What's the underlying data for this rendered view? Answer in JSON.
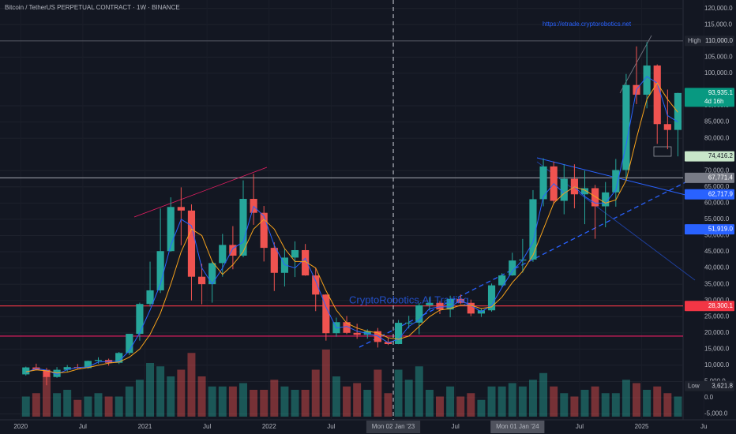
{
  "chart_data": {
    "type": "candlestick",
    "title": "Bitcoin / TetherUS PERPETUAL CONTRACT · 1W · BINANCE",
    "link": "https://etrade.cryptorobotics.net",
    "watermark": "CryptoRobotics.AI Trading",
    "x": [
      "2020-01",
      "2020-02",
      "2020-03",
      "2020-04",
      "2020-05",
      "2020-06",
      "2020-07",
      "2020-08",
      "2020-09",
      "2020-10",
      "2020-11",
      "2020-12",
      "2021-01",
      "2021-02",
      "2021-03",
      "2021-04",
      "2021-05",
      "2021-06",
      "2021-07",
      "2021-08",
      "2021-09",
      "2021-10",
      "2021-11",
      "2021-12",
      "2022-01",
      "2022-02",
      "2022-03",
      "2022-04",
      "2022-05",
      "2022-06",
      "2022-07",
      "2022-08",
      "2022-09",
      "2022-10",
      "2022-11",
      "2022-12",
      "2023-01",
      "2023-02",
      "2023-03",
      "2023-04",
      "2023-05",
      "2023-06",
      "2023-07",
      "2023-08",
      "2023-09",
      "2023-10",
      "2023-11",
      "2023-12",
      "2024-01",
      "2024-02",
      "2024-03",
      "2024-04",
      "2024-05",
      "2024-06",
      "2024-07",
      "2024-08",
      "2024-09",
      "2024-10",
      "2024-11",
      "2024-12",
      "2025-01",
      "2025-02",
      "2025-03",
      "2025-04"
    ],
    "open": [
      7200,
      9350,
      8600,
      6400,
      8620,
      9450,
      9140,
      11350,
      11650,
      10780,
      13800,
      19700,
      28900,
      33100,
      45200,
      58800,
      57700,
      37300,
      35000,
      41500,
      47100,
      43800,
      61300,
      57000,
      46200,
      38500,
      43200,
      45500,
      37700,
      31800,
      19900,
      23300,
      20000,
      19400,
      20500,
      17200,
      16550,
      23100,
      23150,
      28500,
      29250,
      27200,
      30450,
      29250,
      25950,
      26950,
      34650,
      37700,
      42300,
      42600,
      61200,
      71300,
      60700,
      67500,
      62700,
      64600,
      59000,
      63300,
      70200,
      96400,
      93400,
      102400,
      84350,
      82550
    ],
    "high": [
      9600,
      10500,
      9200,
      9450,
      10080,
      10400,
      11450,
      12470,
      12050,
      14100,
      19480,
      29300,
      41950,
      58350,
      61780,
      64850,
      59600,
      41300,
      42300,
      50500,
      52900,
      67000,
      69000,
      59100,
      47900,
      45800,
      48200,
      47400,
      40000,
      31900,
      24700,
      25200,
      22800,
      21100,
      21500,
      18400,
      23950,
      25250,
      29200,
      31000,
      29800,
      31450,
      31800,
      30250,
      27500,
      35200,
      38400,
      44700,
      48950,
      64000,
      73800,
      72800,
      71950,
      71950,
      70000,
      65600,
      66500,
      73600,
      99800,
      108300,
      109600,
      102750,
      95000,
      94000
    ],
    "low": [
      6850,
      8450,
      3850,
      6150,
      8100,
      8900,
      8950,
      10500,
      9900,
      10400,
      13200,
      17600,
      28100,
      32300,
      45000,
      47000,
      30000,
      28800,
      29300,
      37300,
      39600,
      43300,
      53300,
      42000,
      32900,
      34300,
      37200,
      37600,
      26700,
      17600,
      18800,
      19600,
      18150,
      18200,
      15480,
      16250,
      16500,
      21350,
      19550,
      26900,
      25800,
      24800,
      28850,
      25150,
      24900,
      26550,
      34100,
      37600,
      38550,
      41900,
      59000,
      59600,
      56550,
      58400,
      53500,
      49000,
      52550,
      58900,
      66800,
      90500,
      89200,
      78250,
      76600,
      74400
    ],
    "close": [
      9350,
      8600,
      6400,
      8620,
      9450,
      9140,
      11350,
      11650,
      10780,
      13800,
      19700,
      28900,
      33100,
      45200,
      58800,
      57700,
      37300,
      35000,
      41500,
      47100,
      43800,
      61300,
      57000,
      46200,
      38500,
      43200,
      45500,
      37700,
      31800,
      19900,
      23300,
      20000,
      19400,
      20500,
      17200,
      16550,
      23100,
      23150,
      28500,
      29250,
      27200,
      30450,
      29250,
      25950,
      26950,
      34650,
      37700,
      42300,
      42600,
      61200,
      71300,
      60700,
      67500,
      62700,
      64600,
      59000,
      63300,
      70200,
      96400,
      93400,
      102400,
      84350,
      82550,
      93935.1
    ],
    "volume": [
      30,
      35,
      60,
      35,
      40,
      25,
      30,
      35,
      30,
      30,
      45,
      55,
      80,
      75,
      60,
      70,
      95,
      60,
      45,
      45,
      45,
      50,
      40,
      40,
      55,
      45,
      40,
      40,
      70,
      100,
      60,
      45,
      50,
      40,
      70,
      35,
      70,
      55,
      75,
      40,
      30,
      45,
      30,
      35,
      25,
      45,
      45,
      50,
      45,
      55,
      65,
      45,
      35,
      30,
      40,
      45,
      35,
      35,
      55,
      50,
      40,
      45,
      35,
      30
    ],
    "up_color": "#26a69a",
    "down_color": "#ef5350",
    "series": [
      {
        "color": "#2962ff",
        "values": [
          7800,
          9000,
          8500,
          7200,
          8700,
          9300,
          9500,
          11000,
          11200,
          11300,
          14500,
          20000,
          27000,
          35000,
          47000,
          55000,
          53000,
          40000,
          35000,
          40000,
          46000,
          48000,
          59000,
          56000,
          47000,
          41000,
          40000,
          43000,
          36000,
          28000,
          21500,
          22000,
          20500,
          19800,
          19000,
          17000,
          18000,
          22000,
          24000,
          27500,
          28000,
          28000,
          30000,
          28500,
          26500,
          28500,
          34000,
          39000,
          42500,
          48000,
          62000,
          66000,
          63000,
          65000,
          62000,
          60000,
          60000,
          64000,
          78000,
          95000,
          99000,
          97000,
          87000,
          85000
        ]
      },
      {
        "color": "#f7a21b",
        "values": [
          8000,
          8600,
          8300,
          7600,
          7900,
          8800,
          9300,
          10000,
          10700,
          11000,
          12500,
          15000,
          19500,
          26000,
          35000,
          45000,
          52000,
          50000,
          42000,
          38000,
          41000,
          45000,
          52000,
          55000,
          52000,
          46000,
          42000,
          42000,
          40000,
          33000,
          27000,
          23000,
          21500,
          20500,
          20000,
          18500,
          18000,
          19000,
          22000,
          25000,
          27000,
          27500,
          28500,
          28500,
          27500,
          28000,
          31000,
          35500,
          39000,
          44000,
          52000,
          60000,
          63000,
          65000,
          64000,
          62000,
          60000,
          61000,
          67000,
          80000,
          92000,
          97000,
          92000,
          88000
        ]
      }
    ],
    "xlim": [
      "2019-11",
      "2025-05"
    ],
    "xticks": [
      {
        "value": "2020-01",
        "label": "2020"
      },
      {
        "value": "2020-07",
        "label": "Jul"
      },
      {
        "value": "2021-01",
        "label": "2021"
      },
      {
        "value": "2021-07",
        "label": "Jul"
      },
      {
        "value": "2022-01",
        "label": "2022"
      },
      {
        "value": "2022-07",
        "label": "Jul"
      },
      {
        "value": "2023-01",
        "label": "Mon 02 Jan '23"
      },
      {
        "value": "2023-07",
        "label": "Jul"
      },
      {
        "value": "2024-01",
        "label": "Mon 01 Jan '24"
      },
      {
        "value": "2024-07",
        "label": "Jul"
      },
      {
        "value": "2025-01",
        "label": "2025"
      },
      {
        "value": "2025-07",
        "label": "Ju"
      }
    ],
    "crosshair_x": "2023-01",
    "ylim": [
      -6800,
      122600
    ],
    "yticks": [
      {
        "value": 120000,
        "label": "120,000.0"
      },
      {
        "value": 115000,
        "label": "115,000.0"
      },
      {
        "value": 105000,
        "label": "105,000.0"
      },
      {
        "value": 100000,
        "label": "100,000.0"
      },
      {
        "value": 90000,
        "label": "90,000.0"
      },
      {
        "value": 85000,
        "label": "85,000.0"
      },
      {
        "value": 80000,
        "label": "80,000.0"
      },
      {
        "value": 70000,
        "label": "70,000.0"
      },
      {
        "value": 65000,
        "label": "65,000.0"
      },
      {
        "value": 60000,
        "label": "60,000.0"
      },
      {
        "value": 55000,
        "label": "55,000.0"
      },
      {
        "value": 50000,
        "label": "50,000.0"
      },
      {
        "value": 45000,
        "label": "45,000.0"
      },
      {
        "value": 40000,
        "label": "40,000.0"
      },
      {
        "value": 35000,
        "label": "35,000.0"
      },
      {
        "value": 30000,
        "label": "30,000.0"
      },
      {
        "value": 25000,
        "label": "25,000.0"
      },
      {
        "value": 20000,
        "label": "20,000.0"
      },
      {
        "value": 15000,
        "label": "15,000.0"
      },
      {
        "value": 10000,
        "label": "10,000.0"
      },
      {
        "value": 5000,
        "label": "5,000.0"
      },
      {
        "value": 0,
        "label": "0.0"
      },
      {
        "value": -5000,
        "label": "-5,000.0"
      }
    ],
    "grid": true,
    "horizontal_lines": [
      {
        "value": 110000,
        "color": "#50535e"
      },
      {
        "value": 67771.4,
        "color": "#9598a1"
      },
      {
        "value": 28300.1,
        "color": "#f23645"
      },
      {
        "value": 19000,
        "color": "#e91e63"
      }
    ],
    "price_badges": [
      {
        "value": 110000,
        "label": "110,000.0",
        "tag": "High",
        "color": "#1e222d",
        "text_color": "#d1d4dc"
      },
      {
        "value": 93935.1,
        "label": "93,935.1",
        "tag": "4d 16h",
        "color": "#089981",
        "text_color": "#ffffff"
      },
      {
        "value": 74416.2,
        "label": "74,416.2",
        "color": "#c8e6c9",
        "text_color": "#131722"
      },
      {
        "value": 67771.4,
        "label": "67,771.4",
        "color": "#787b86",
        "text_color": "#ffffff"
      },
      {
        "value": 62717.9,
        "label": "62,717.9",
        "color": "#2962ff",
        "text_color": "#ffffff"
      },
      {
        "value": 51919.0,
        "label": "51,919.0",
        "color": "#2962ff",
        "text_color": "#ffffff"
      },
      {
        "value": 28300.1,
        "label": "28,300.1",
        "color": "#f23645",
        "text_color": "#ffffff"
      },
      {
        "value": 3621.8,
        "label": "3,621.8",
        "tag": "Low",
        "color": "#1e222d",
        "text_color": "#d1d4dc"
      }
    ]
  }
}
